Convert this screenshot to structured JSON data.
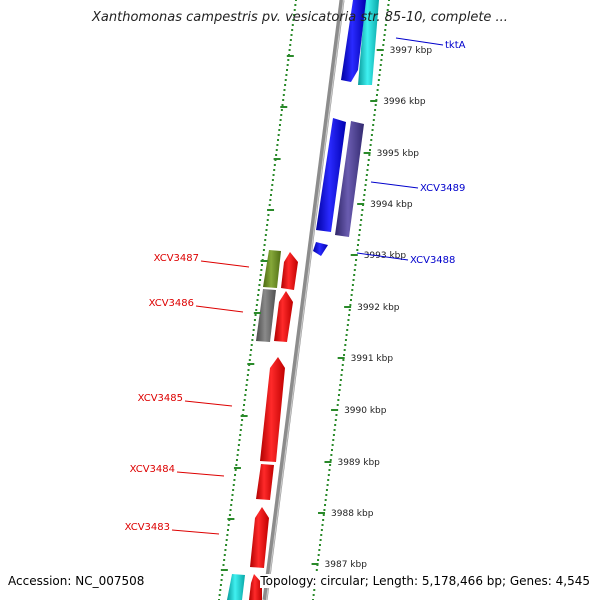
{
  "title": "Xanthomonas campestris pv. vesicatoria str. 85-10, complete ...",
  "footer": {
    "accession": "Accession: NC_007508",
    "topology": "Topology: circular; Length: 5,178,466 bp; Genes: 4,545"
  },
  "colors": {
    "backbone": "#8c8c8c",
    "dots": "#2a8a2a",
    "tick_text": "#222222",
    "left_label": "#dd0000",
    "right_label": "#0000cc",
    "gene_red": "#ff0000",
    "gene_blue": "#0000ee",
    "gene_purple": "#4a3d8f",
    "gene_cyan": "#10d0d0",
    "gene_olive": "#6b8e23",
    "gene_gray": "#6b6b6b"
  },
  "ticks": [
    {
      "label": "3997 kbp"
    },
    {
      "label": "3996 kbp"
    },
    {
      "label": "3995 kbp"
    },
    {
      "label": "3994 kbp"
    },
    {
      "label": "3993 kbp"
    },
    {
      "label": "3992 kbp"
    },
    {
      "label": "3991 kbp"
    },
    {
      "label": "3990 kbp"
    },
    {
      "label": "3989 kbp"
    },
    {
      "label": "3988 kbp"
    },
    {
      "label": "3987 kbp"
    }
  ],
  "labels_left": [
    {
      "text": "XCV3487"
    },
    {
      "text": "XCV3486"
    },
    {
      "text": "XCV3485"
    },
    {
      "text": "XCV3484"
    },
    {
      "text": "XCV3483"
    }
  ],
  "labels_right": [
    {
      "text": "tktA"
    },
    {
      "text": "XCV3489"
    },
    {
      "text": "XCV3488"
    }
  ]
}
